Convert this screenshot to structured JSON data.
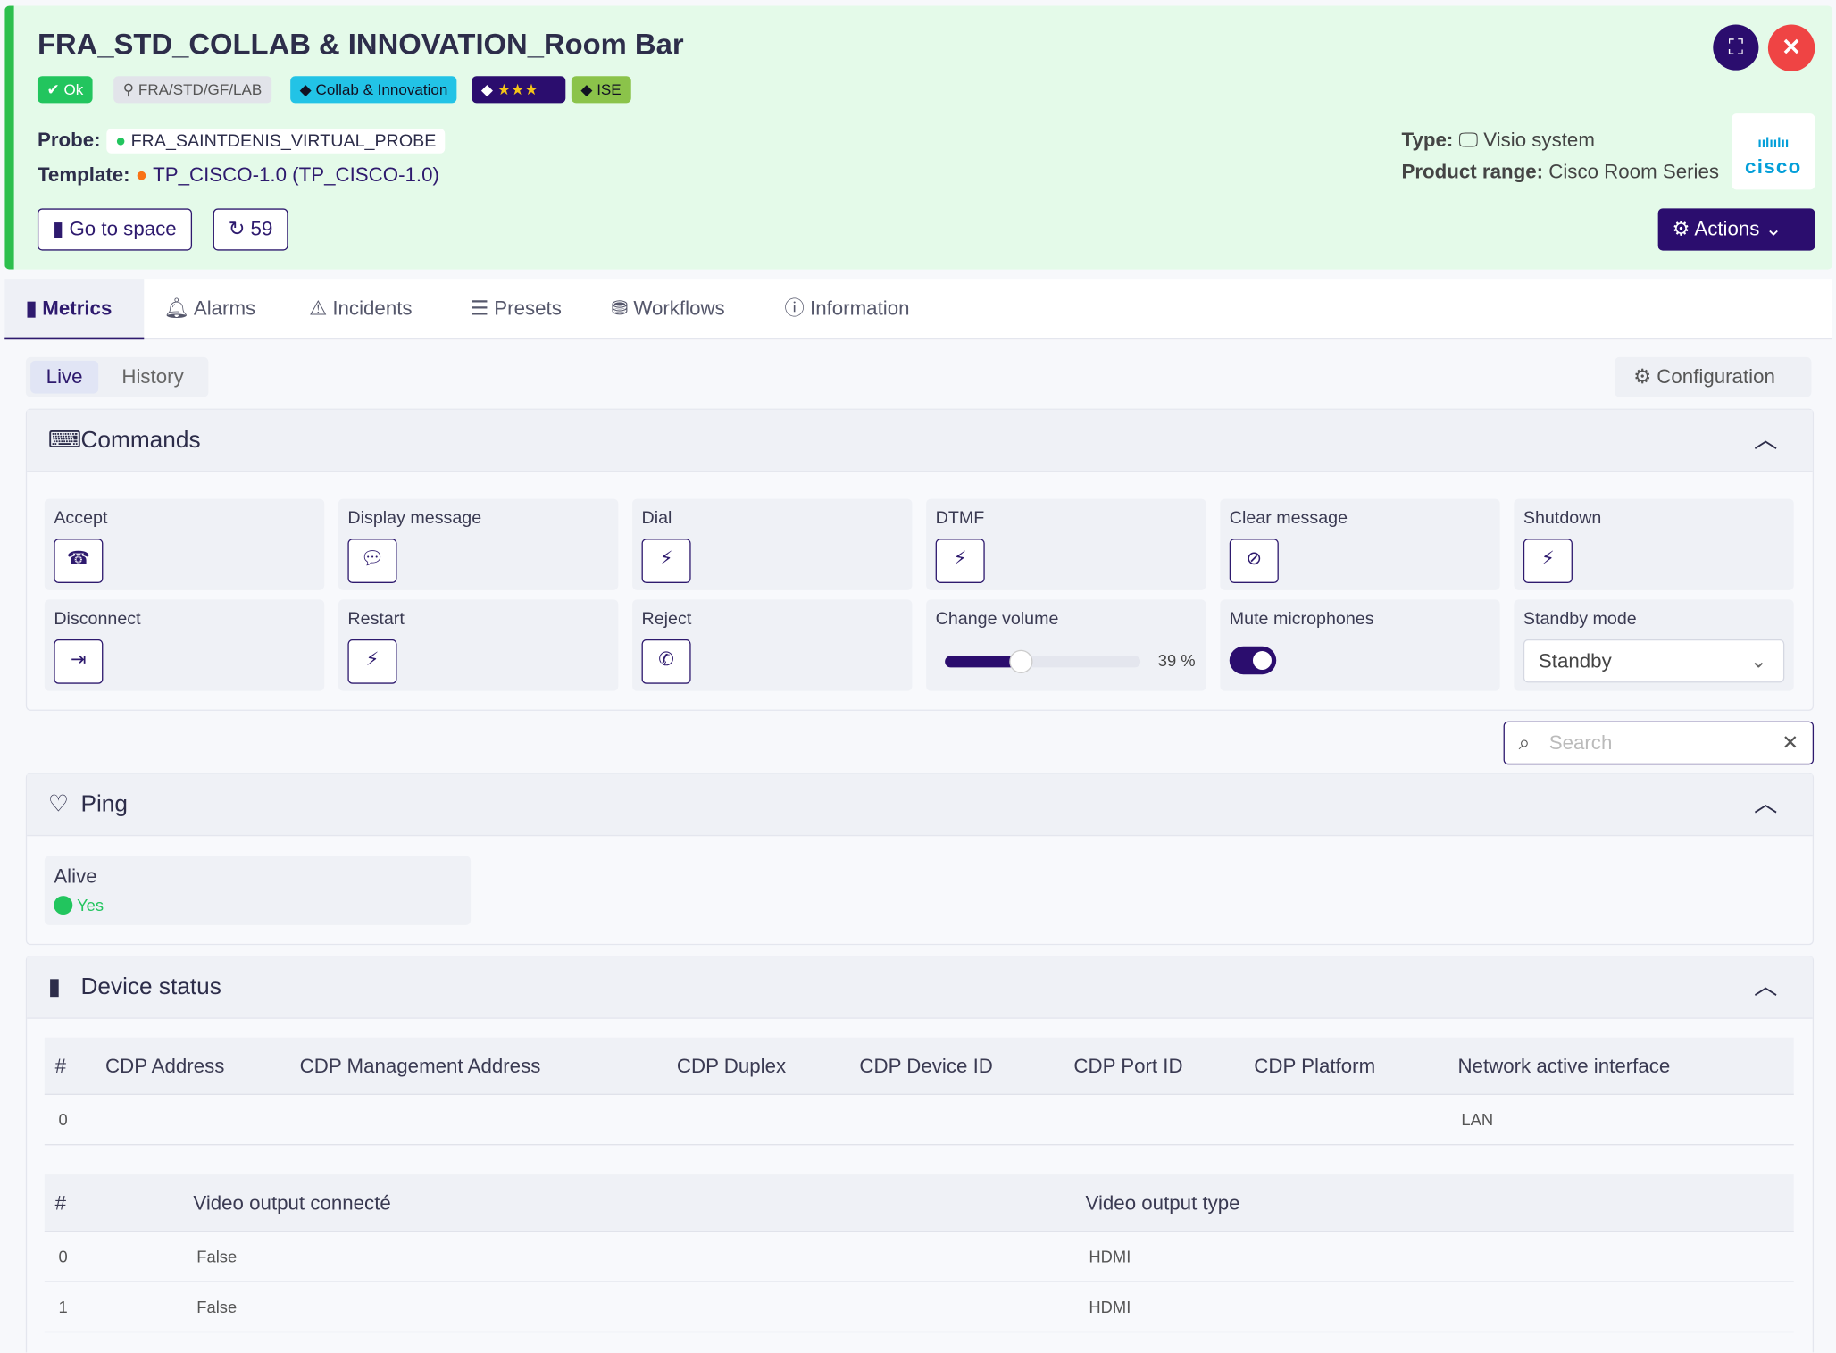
{
  "header": {
    "title": "FRA_STD_COLLAB & INNOVATION_Room Bar",
    "badges": [
      "Ok",
      "FRA/STD/GF/LAB",
      "Collab & Innovation",
      "ISE"
    ],
    "probe_label": "Probe:",
    "probe": "FRA_SAINTDENIS_VIRTUAL_PROBE",
    "template_label": "Template:",
    "template": "TP_CISCO-1.0 (TP_CISCO-1.0)",
    "type_label": "Type:",
    "type": "Visio system",
    "product_range_label": "Product range:",
    "product_range": "Cisco Room Series",
    "logo": "cisco",
    "go_to_space": "Go to space",
    "refresh": "59",
    "actions": "Actions"
  },
  "tabs": [
    "Metrics",
    "Alarms",
    "Incidents",
    "Presets",
    "Workflows",
    "Information"
  ],
  "subtabs": [
    "Live",
    "History"
  ],
  "configuration": "Configuration",
  "commands": {
    "title": "Commands",
    "items": [
      "Accept",
      "Display message",
      "Dial",
      "DTMF",
      "Clear message",
      "Shutdown",
      "Disconnect",
      "Restart",
      "Reject",
      "Change volume",
      "Mute microphones",
      "Standby mode"
    ],
    "volume": {
      "value": 39,
      "label": "39 %"
    },
    "standby": "Standby"
  },
  "search_placeholder": "Search",
  "ping": {
    "title": "Ping",
    "items": [
      {
        "label": "Alive",
        "value": "Yes"
      }
    ]
  },
  "device_status": {
    "title": "Device status",
    "tables": [
      {
        "headers": [
          "#",
          "CDP Address",
          "CDP Management Address",
          "CDP Duplex",
          "CDP Device ID",
          "CDP Port ID",
          "CDP Platform",
          "Network active interface"
        ],
        "rows": [
          [
            "0",
            null,
            null,
            null,
            null,
            null,
            null,
            "LAN"
          ]
        ]
      },
      {
        "headers": [
          "#",
          "Video output connecté",
          "Video output type"
        ],
        "rows": [
          [
            "0",
            "False",
            "HDMI"
          ],
          [
            "1",
            "False",
            "HDMI"
          ]
        ]
      }
    ]
  }
}
